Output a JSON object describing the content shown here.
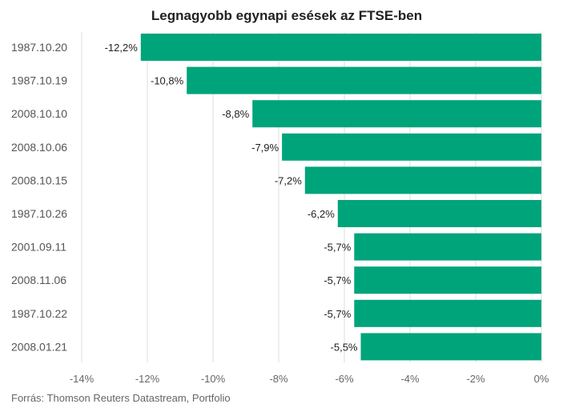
{
  "chart_data": {
    "type": "bar",
    "orientation": "horizontal",
    "title": "Legnagyobb egynapi esések az FTSE-ben",
    "xlabel": "",
    "ylabel": "",
    "categories": [
      "1987.10.20",
      "1987.10.19",
      "2008.10.10",
      "2008.10.06",
      "2008.10.15",
      "1987.10.26",
      "2001.09.11",
      "2008.11.06",
      "1987.10.22",
      "2008.01.21"
    ],
    "values": [
      -12.2,
      -10.8,
      -8.8,
      -7.9,
      -7.2,
      -6.2,
      -5.7,
      -5.7,
      -5.7,
      -5.5
    ],
    "data_labels": [
      "-12,2%",
      "-10,8%",
      "-8,8%",
      "-7,9%",
      "-7,2%",
      "-6,2%",
      "-5,7%",
      "-5,7%",
      "-5,7%",
      "-5,5%"
    ],
    "xlim": [
      -14,
      0
    ],
    "xticks": [
      -14,
      -12,
      -10,
      -8,
      -6,
      -4,
      -2,
      0
    ],
    "xtick_labels": [
      "-14%",
      "-12%",
      "-10%",
      "-8%",
      "-6%",
      "-4%",
      "-2%",
      "0%"
    ],
    "grid": true,
    "legend": "none",
    "bar_color": "#00a47a"
  },
  "source": "Forrás: Thomson Reuters Datastream, Portfolio"
}
